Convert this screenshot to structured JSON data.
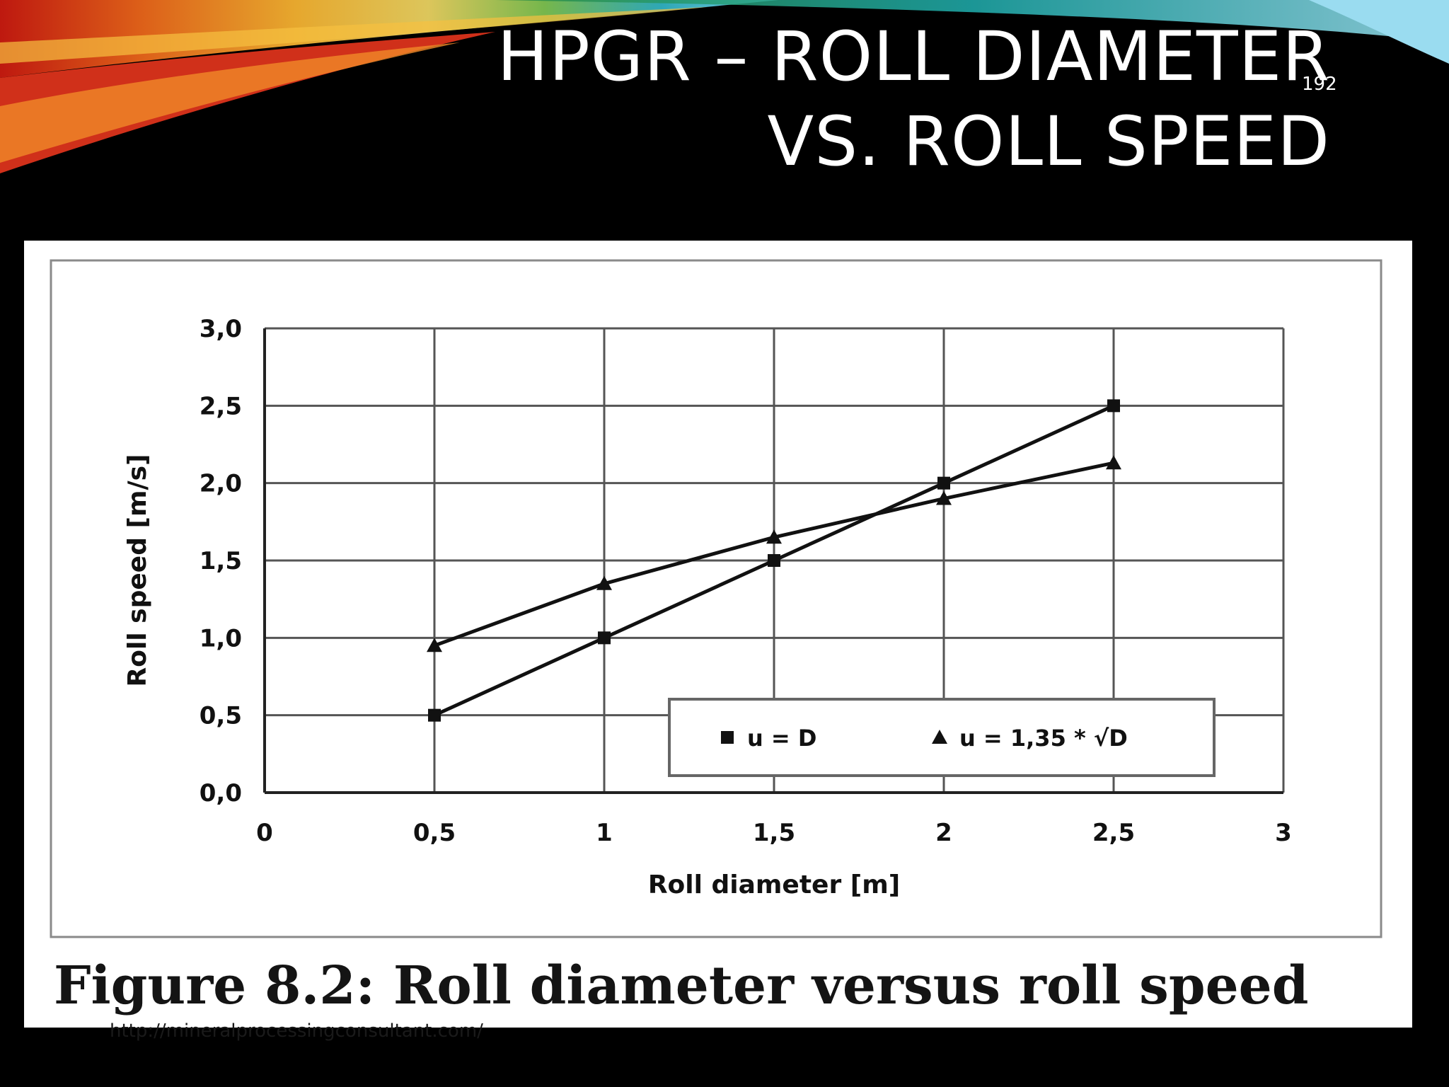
{
  "slide": {
    "title_line1": "HPGR – ROLL DIAMETER",
    "title_line2": "VS. ROLL SPEED",
    "slide_number": "192",
    "caption": "Figure 8.2: Roll diameter versus roll speed",
    "source_url": "http://mineralprocessingconsultant.com/"
  },
  "colors": {
    "background": "#000000",
    "panel": "#ffffff",
    "series": "#111111",
    "grid": "#555555"
  },
  "chart_data": {
    "type": "line",
    "title": "",
    "xlabel": "Roll diameter [m]",
    "ylabel": "Roll speed [m/s]",
    "xlim": [
      0,
      3
    ],
    "ylim": [
      0,
      3
    ],
    "x_ticks": [
      "0",
      "0,5",
      "1",
      "1,5",
      "2",
      "2,5",
      "3"
    ],
    "y_ticks": [
      "0,0",
      "0,5",
      "1,0",
      "1,5",
      "2,0",
      "2,5",
      "3,0"
    ],
    "grid": true,
    "legend_position": "bottom-right",
    "series": [
      {
        "name": "u = D",
        "marker": "square",
        "x": [
          0.5,
          1,
          1.5,
          2,
          2.5
        ],
        "y": [
          0.5,
          1.0,
          1.5,
          2.0,
          2.5
        ]
      },
      {
        "name": "u = 1,35 * √D",
        "marker": "triangle",
        "x": [
          0.5,
          1,
          1.5,
          2,
          2.5
        ],
        "y": [
          0.95,
          1.35,
          1.65,
          1.9,
          2.13
        ]
      }
    ]
  }
}
